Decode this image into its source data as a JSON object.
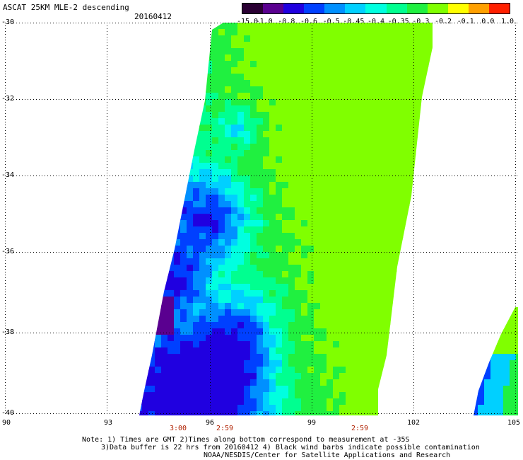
{
  "header": {
    "title": "ASCAT 25KM MLE-2 descending",
    "date": "20160412"
  },
  "colorbar": {
    "labels": [
      "-15.0",
      "-1.0",
      "-0.8",
      "-0.6",
      "-0.5",
      "-0.45",
      "-0.4",
      "-0.35",
      "-0.3",
      "-0.2",
      "-0.1",
      "0.0",
      "1.0"
    ],
    "colors": [
      "#2a0033",
      "#5a0090",
      "#2000e0",
      "#0040ff",
      "#0090ff",
      "#00d0ff",
      "#00ffe0",
      "#00ff90",
      "#20f040",
      "#80ff00",
      "#ffff00",
      "#ffa000",
      "#ff2000"
    ]
  },
  "axes": {
    "lat_labels": [
      "-30",
      "-32",
      "-34",
      "-36",
      "-38",
      "-40"
    ],
    "lon_labels": [
      "90",
      "93",
      "96",
      "99",
      "102",
      "105"
    ]
  },
  "time_labels": [
    "3:00",
    "2:59",
    "2:59"
  ],
  "notes": {
    "line1": "Note: 1) Times are GMT 2)Times along bottom correspond to measurement at -35S",
    "line2": "3)Data buffer is 22 hrs from 20160412 4) Black wind barbs indicate possible contamination",
    "line3": "NOAA/NESDIS/Center for Satellite Applications and Research"
  }
}
